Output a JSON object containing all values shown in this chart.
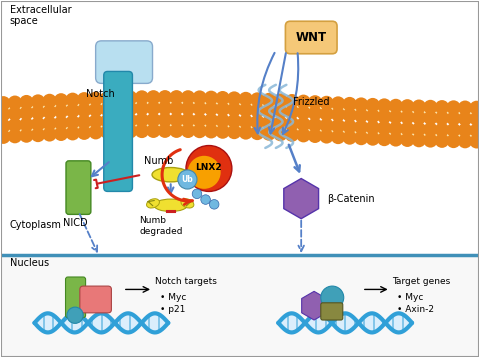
{
  "figsize": [
    4.8,
    3.58
  ],
  "dpi": 100,
  "bg_color": "#ffffff",
  "border_color": "#999999",
  "membrane_color": "#e8841a",
  "membrane_inner_color": "#fde8b0",
  "extracellular_label": "Extracellular\nspace",
  "cytoplasm_label": "Cytoplasm",
  "nucleus_label": "Nucleus",
  "labels": {
    "notch": "Notch",
    "nicd": "NICD",
    "numb": "Numb",
    "lnx2": "LNX2",
    "ub": "Ub",
    "numb_degraded": "Numb\ndegraded",
    "wnt": "WNT",
    "frizzled": "Frizzled",
    "beta_catenin": "β-Catenin",
    "notch_targets": "Notch targets",
    "target_genes": "Target genes",
    "myc1": "Myc",
    "p21": "p21",
    "myc2": "Myc",
    "axin2": "Axin-2"
  },
  "colors": {
    "notch_top": "#b8dff0",
    "notch_receptor": "#3aacbf",
    "nicd": "#7ab648",
    "numb": "#f0e030",
    "lnx2_outer": "#e03010",
    "lnx2_inner": "#f8a000",
    "ub": "#70b8e0",
    "wnt": "#f5c878",
    "wnt_border": "#d4a040",
    "frizzled_lines": "#8ab8d8",
    "beta_catenin": "#9060b0",
    "dna": "#30a0d8",
    "dna_stripe": "#c8e8ff",
    "notch_complex_green": "#7ab648",
    "notch_complex_pink": "#e87878",
    "notch_complex_teal": "#40a0b8",
    "wnt_complex_purple": "#9060b0",
    "wnt_complex_teal": "#40a0b8",
    "wnt_complex_olive": "#888840",
    "arrow_blue": "#5580c8",
    "arrow_red": "#cc2020",
    "nucleus_line": "#4090b8",
    "ubiquitin_beads": "#70b8e0"
  }
}
